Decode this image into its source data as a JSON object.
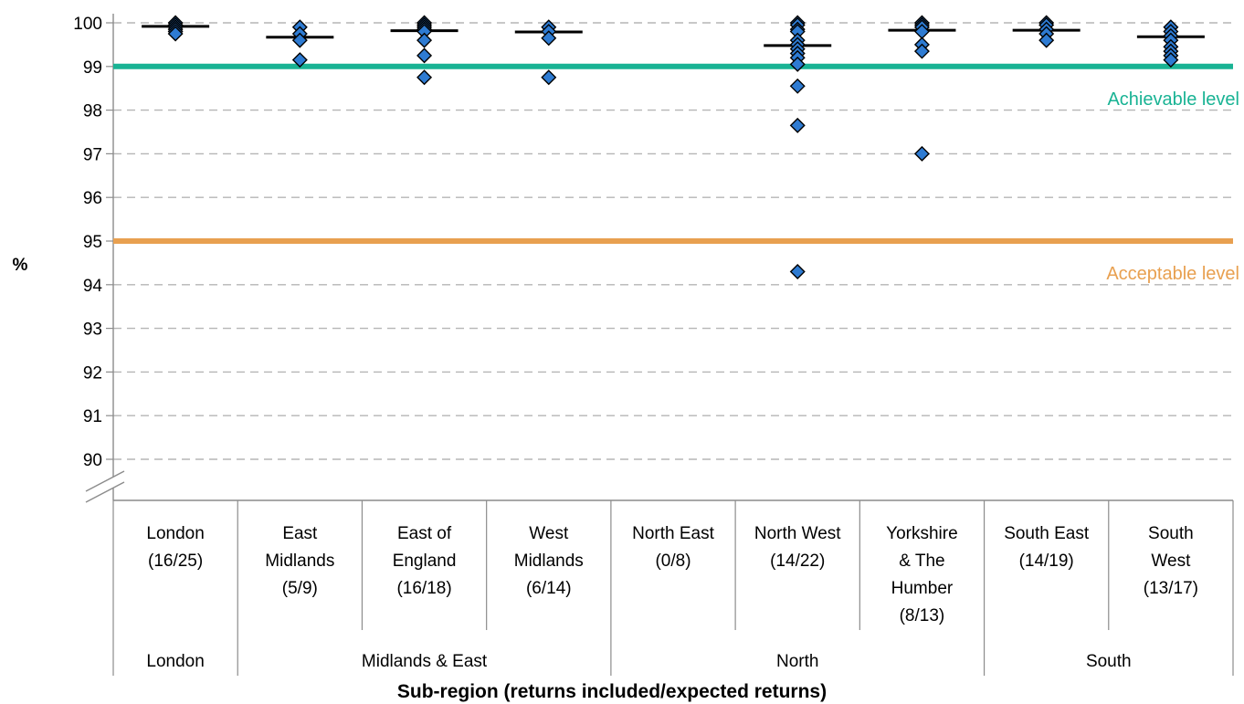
{
  "chart_data": {
    "type": "scatter",
    "ylabel": "%",
    "xlabel": "Sub-region (returns included/expected returns)",
    "ylim": [
      90,
      100
    ],
    "yticks": [
      "90",
      "91",
      "92",
      "93",
      "94",
      "95",
      "96",
      "97",
      "98",
      "99",
      "100"
    ],
    "axis_break": true,
    "grid": "horizontal dashed",
    "categories": [
      {
        "label": [
          "London",
          "(16/25)"
        ],
        "region": "London",
        "values": [
          100.0,
          99.95,
          99.9,
          99.85,
          99.8,
          99.75
        ],
        "median": 99.92
      },
      {
        "label": [
          "East",
          "Midlands",
          "(5/9)"
        ],
        "region": "Midlands & East",
        "values": [
          99.9,
          99.75,
          99.6,
          99.15
        ],
        "median": 99.67
      },
      {
        "label": [
          "East of",
          "England",
          "(16/18)"
        ],
        "region": "Midlands & East",
        "values": [
          100.0,
          99.95,
          99.9,
          99.85,
          99.8,
          99.6,
          99.25,
          98.75
        ],
        "median": 99.82
      },
      {
        "label": [
          "West",
          "Midlands",
          "(6/14)"
        ],
        "region": "Midlands & East",
        "values": [
          99.9,
          99.8,
          99.65,
          98.75
        ],
        "median": 99.79
      },
      {
        "label": [
          "North East",
          "(0/8)"
        ],
        "region": "North",
        "values": [],
        "median": null
      },
      {
        "label": [
          "North West",
          "(14/22)"
        ],
        "region": "North",
        "values": [
          100.0,
          99.95,
          99.85,
          99.8,
          99.6,
          99.5,
          99.4,
          99.3,
          99.2,
          99.05,
          98.55,
          97.65,
          94.3
        ],
        "median": 99.48
      },
      {
        "label": [
          "Yorkshire",
          "& The",
          "Humber",
          "(8/13)"
        ],
        "region": "North",
        "values": [
          100.0,
          99.95,
          99.9,
          99.8,
          99.5,
          99.35,
          97.0
        ],
        "median": 99.83
      },
      {
        "label": [
          "South East",
          "(14/19)"
        ],
        "region": "South",
        "values": [
          100.0,
          99.95,
          99.85,
          99.75,
          99.6
        ],
        "median": 99.83
      },
      {
        "label": [
          "South",
          "West",
          "(13/17)"
        ],
        "region": "South",
        "values": [
          99.9,
          99.8,
          99.7,
          99.6,
          99.45,
          99.35,
          99.25,
          99.15
        ],
        "median": 99.68
      }
    ],
    "regions": [
      "London",
      "Midlands & East",
      "North",
      "South"
    ],
    "reference_lines": [
      {
        "name": "Achievable level",
        "value": 99,
        "color": "#19b394"
      },
      {
        "name": "Acceptable level",
        "value": 95,
        "color": "#e8a050"
      }
    ],
    "marker_color": "#2e7bd2",
    "median_color": "#000000"
  }
}
